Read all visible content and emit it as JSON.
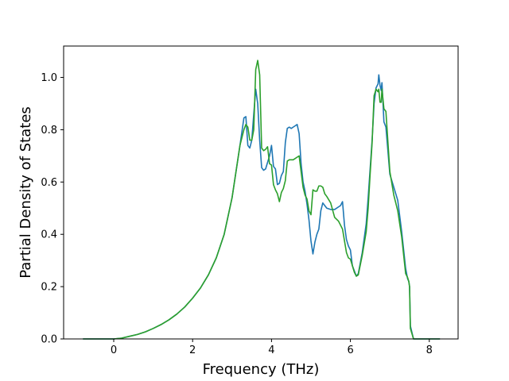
{
  "chart_data": {
    "type": "line",
    "title": "",
    "xlabel": "Frequency (THz)",
    "ylabel": "Partial Density of States",
    "xlim": [
      -1.27,
      8.73
    ],
    "ylim": [
      0.0,
      1.12
    ],
    "xticks": [
      0,
      2,
      4,
      6,
      8
    ],
    "xtick_labels": [
      "0",
      "2",
      "4",
      "6",
      "8"
    ],
    "yticks": [
      0.0,
      0.2,
      0.4,
      0.6,
      0.8,
      1.0
    ],
    "ytick_labels": [
      "0.0",
      "0.2",
      "0.4",
      "0.6",
      "0.8",
      "1.0"
    ],
    "grid": false,
    "series": [
      {
        "color": "#1f77b4",
        "x": [
          -0.78,
          0.0,
          0.2,
          0.4,
          0.6,
          0.8,
          1.0,
          1.2,
          1.4,
          1.6,
          1.8,
          2.0,
          2.2,
          2.4,
          2.6,
          2.8,
          3.0,
          3.1,
          3.2,
          3.3,
          3.35,
          3.4,
          3.45,
          3.5,
          3.55,
          3.6,
          3.65,
          3.7,
          3.75,
          3.8,
          3.85,
          3.9,
          3.95,
          4.0,
          4.05,
          4.1,
          4.15,
          4.2,
          4.25,
          4.3,
          4.35,
          4.4,
          4.45,
          4.5,
          4.55,
          4.6,
          4.65,
          4.7,
          4.75,
          4.8,
          4.85,
          4.9,
          4.95,
          5.0,
          5.05,
          5.1,
          5.15,
          5.2,
          5.25,
          5.3,
          5.35,
          5.4,
          5.5,
          5.6,
          5.7,
          5.75,
          5.8,
          5.85,
          5.9,
          5.95,
          6.0,
          6.05,
          6.1,
          6.15,
          6.2,
          6.3,
          6.4,
          6.45,
          6.5,
          6.55,
          6.6,
          6.65,
          6.7,
          6.72,
          6.75,
          6.78,
          6.8,
          6.85,
          6.9,
          7.0,
          7.1,
          7.2,
          7.3,
          7.4,
          7.45,
          7.48,
          7.5,
          7.52,
          7.6,
          8.27
        ],
        "y": [
          0.0,
          0.0,
          0.003,
          0.01,
          0.017,
          0.027,
          0.04,
          0.055,
          0.073,
          0.095,
          0.122,
          0.156,
          0.195,
          0.245,
          0.31,
          0.4,
          0.54,
          0.64,
          0.74,
          0.845,
          0.85,
          0.74,
          0.73,
          0.76,
          0.86,
          0.955,
          0.9,
          0.76,
          0.655,
          0.645,
          0.65,
          0.675,
          0.7,
          0.74,
          0.66,
          0.65,
          0.59,
          0.595,
          0.625,
          0.64,
          0.75,
          0.805,
          0.81,
          0.805,
          0.81,
          0.815,
          0.82,
          0.785,
          0.67,
          0.6,
          0.565,
          0.515,
          0.455,
          0.375,
          0.325,
          0.37,
          0.4,
          0.42,
          0.49,
          0.52,
          0.51,
          0.5,
          0.495,
          0.495,
          0.505,
          0.51,
          0.525,
          0.435,
          0.38,
          0.355,
          0.34,
          0.28,
          0.26,
          0.24,
          0.25,
          0.33,
          0.44,
          0.54,
          0.65,
          0.76,
          0.9,
          0.96,
          0.975,
          1.01,
          0.97,
          0.95,
          0.98,
          0.83,
          0.81,
          0.63,
          0.58,
          0.53,
          0.41,
          0.27,
          0.23,
          0.22,
          0.2,
          0.05,
          0.0,
          0.0
        ]
      },
      {
        "color": "#2ca02c",
        "x": [
          -0.78,
          0.0,
          0.2,
          0.4,
          0.6,
          0.8,
          1.0,
          1.2,
          1.4,
          1.6,
          1.8,
          2.0,
          2.2,
          2.4,
          2.6,
          2.8,
          3.0,
          3.1,
          3.2,
          3.3,
          3.35,
          3.4,
          3.45,
          3.5,
          3.55,
          3.6,
          3.65,
          3.7,
          3.75,
          3.8,
          3.85,
          3.9,
          3.95,
          4.0,
          4.05,
          4.1,
          4.15,
          4.2,
          4.25,
          4.3,
          4.35,
          4.4,
          4.45,
          4.5,
          4.55,
          4.6,
          4.65,
          4.7,
          4.75,
          4.8,
          4.85,
          4.9,
          4.95,
          5.0,
          5.05,
          5.1,
          5.15,
          5.2,
          5.25,
          5.3,
          5.35,
          5.4,
          5.5,
          5.6,
          5.7,
          5.75,
          5.8,
          5.85,
          5.9,
          5.95,
          6.0,
          6.05,
          6.1,
          6.15,
          6.2,
          6.3,
          6.4,
          6.45,
          6.5,
          6.55,
          6.6,
          6.65,
          6.7,
          6.72,
          6.75,
          6.78,
          6.8,
          6.85,
          6.9,
          7.0,
          7.1,
          7.2,
          7.3,
          7.4,
          7.45,
          7.48,
          7.5,
          7.52,
          7.6,
          8.27
        ],
        "y": [
          0.0,
          0.0,
          0.003,
          0.01,
          0.017,
          0.027,
          0.04,
          0.055,
          0.073,
          0.095,
          0.122,
          0.156,
          0.195,
          0.245,
          0.31,
          0.4,
          0.54,
          0.64,
          0.74,
          0.8,
          0.82,
          0.81,
          0.76,
          0.76,
          0.8,
          1.03,
          1.065,
          1.01,
          0.73,
          0.72,
          0.725,
          0.735,
          0.67,
          0.665,
          0.59,
          0.57,
          0.555,
          0.525,
          0.56,
          0.575,
          0.605,
          0.68,
          0.685,
          0.685,
          0.685,
          0.69,
          0.695,
          0.7,
          0.64,
          0.58,
          0.55,
          0.535,
          0.49,
          0.475,
          0.57,
          0.565,
          0.565,
          0.585,
          0.585,
          0.58,
          0.555,
          0.545,
          0.52,
          0.465,
          0.45,
          0.435,
          0.42,
          0.375,
          0.33,
          0.31,
          0.305,
          0.28,
          0.255,
          0.24,
          0.245,
          0.32,
          0.41,
          0.5,
          0.63,
          0.75,
          0.93,
          0.955,
          0.945,
          0.955,
          0.905,
          0.905,
          0.955,
          0.88,
          0.87,
          0.64,
          0.55,
          0.49,
          0.39,
          0.25,
          0.235,
          0.22,
          0.2,
          0.04,
          0.0,
          0.0
        ]
      }
    ]
  }
}
